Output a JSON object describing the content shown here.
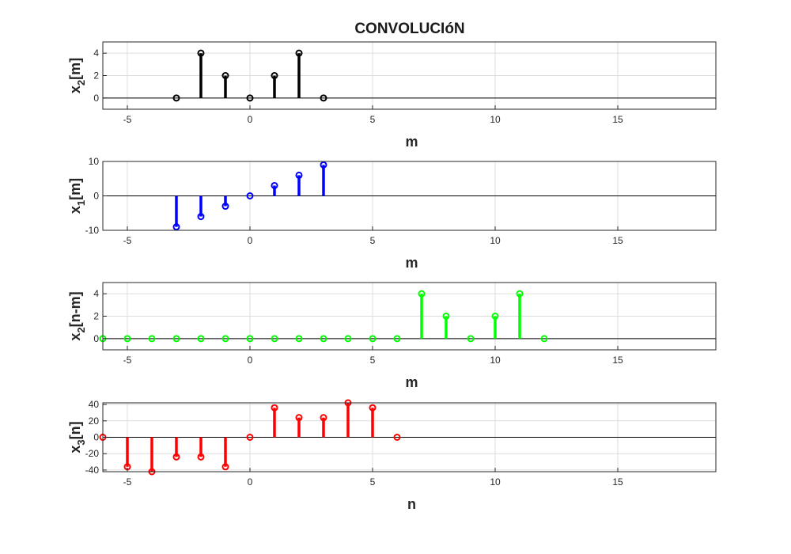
{
  "figure": {
    "title": "CONVOLUCIóN"
  },
  "chart_data": [
    {
      "type": "stem",
      "name": "x2[m]",
      "ylabel": {
        "base": "x",
        "sub": "2",
        "rest": "[m]"
      },
      "xlabel": "m",
      "xlim": [
        -6,
        19
      ],
      "ylim": [
        -1,
        5
      ],
      "xticks": [
        -5,
        0,
        5,
        10,
        15
      ],
      "yticks": [
        0,
        2,
        4
      ],
      "grid": true,
      "color": "#000000",
      "x": [
        -3,
        -2,
        -1,
        0,
        1,
        2,
        3
      ],
      "y": [
        0,
        4,
        2,
        0,
        2,
        4,
        0
      ]
    },
    {
      "type": "stem",
      "name": "x1[m]",
      "ylabel": {
        "base": "x",
        "sub": "1",
        "rest": "[m]"
      },
      "xlabel": "m",
      "xlim": [
        -6,
        19
      ],
      "ylim": [
        -10,
        10
      ],
      "xticks": [
        -5,
        0,
        5,
        10,
        15
      ],
      "yticks": [
        -10,
        0,
        10
      ],
      "grid": true,
      "color": "#0000ff",
      "x": [
        -3,
        -2,
        -1,
        0,
        1,
        2,
        3
      ],
      "y": [
        -9,
        -6,
        -3,
        0,
        3,
        6,
        9
      ]
    },
    {
      "type": "stem",
      "name": "x2[n-m]",
      "ylabel": {
        "base": "x",
        "sub": "2",
        "rest": "[n-m]"
      },
      "xlabel": "m",
      "xlim": [
        -6,
        19
      ],
      "ylim": [
        -1,
        5
      ],
      "xticks": [
        -5,
        0,
        5,
        10,
        15
      ],
      "yticks": [
        0,
        2,
        4
      ],
      "grid": true,
      "color": "#00ff00",
      "x": [
        -6,
        -5,
        -4,
        -3,
        -2,
        -1,
        0,
        1,
        2,
        3,
        4,
        5,
        6,
        7,
        8,
        9,
        10,
        11,
        12
      ],
      "y": [
        0,
        0,
        0,
        0,
        0,
        0,
        0,
        0,
        0,
        0,
        0,
        0,
        0,
        4,
        2,
        0,
        2,
        4,
        0
      ]
    },
    {
      "type": "stem",
      "name": "x3[n]",
      "ylabel": {
        "base": "x",
        "sub": "3",
        "rest": "[n]"
      },
      "xlabel": "n",
      "xlim": [
        -6,
        19
      ],
      "ylim": [
        -42,
        42
      ],
      "xticks": [
        -5,
        0,
        5,
        10,
        15
      ],
      "yticks": [
        -40,
        -20,
        0,
        20,
        40
      ],
      "grid": true,
      "color": "#ff0000",
      "x": [
        -6,
        -5,
        -4,
        -3,
        -2,
        -1,
        0,
        1,
        2,
        3,
        4,
        5,
        6
      ],
      "y": [
        0,
        -36,
        -42,
        -24,
        -24,
        -36,
        0,
        36,
        24,
        24,
        42,
        36,
        0
      ]
    }
  ]
}
